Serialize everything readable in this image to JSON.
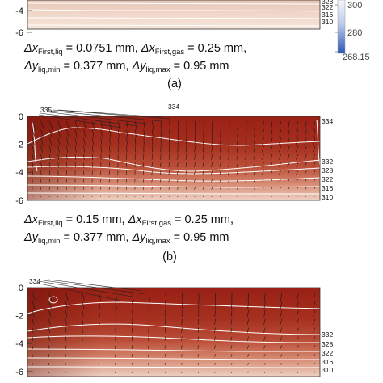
{
  "chart_data": [
    {
      "type": "heatmap",
      "panel_label": "(a)",
      "caption_line1": [
        "Δx",
        "First,liq",
        " = 0.0751 mm, ",
        "Δx",
        "First,gas",
        " = 0.25 mm,"
      ],
      "caption_line2": [
        "Δy",
        "liq,min",
        " = 0.377 mm, ",
        "Δy",
        "liq,max",
        " = 0.95 mm"
      ],
      "y_ticks": [
        -4,
        -6
      ],
      "contour_levels": [
        328,
        322,
        316,
        310
      ]
    },
    {
      "type": "heatmap",
      "panel_label": "(b)",
      "caption_line1": [
        "Δx",
        "First,liq",
        " = 0.15 mm, ",
        "Δx",
        "First,gas",
        " = 0.25 mm,"
      ],
      "caption_line2": [
        "Δy",
        "liq,min",
        " = 0.377 mm, ",
        "Δy",
        "liq,max",
        " = 0.95 mm"
      ],
      "y_ticks": [
        0,
        -2,
        -4,
        -6
      ],
      "contour_levels": [
        335,
        334,
        334,
        332,
        328,
        322,
        316,
        310
      ]
    },
    {
      "type": "heatmap",
      "panel_label": "",
      "y_ticks": [
        0,
        -2,
        -4,
        -6
      ],
      "contour_levels": [
        334,
        332,
        328,
        322,
        316,
        310
      ]
    }
  ],
  "colorbar": {
    "tick_labels": [
      "300",
      "280",
      "268.15"
    ]
  },
  "colors": {
    "hot": "#9e2418",
    "warm": "#c55a44",
    "cool": "#e2bcab",
    "colorbar_top": "#f4f6fb",
    "colorbar_bottom": "#2c55b8"
  }
}
